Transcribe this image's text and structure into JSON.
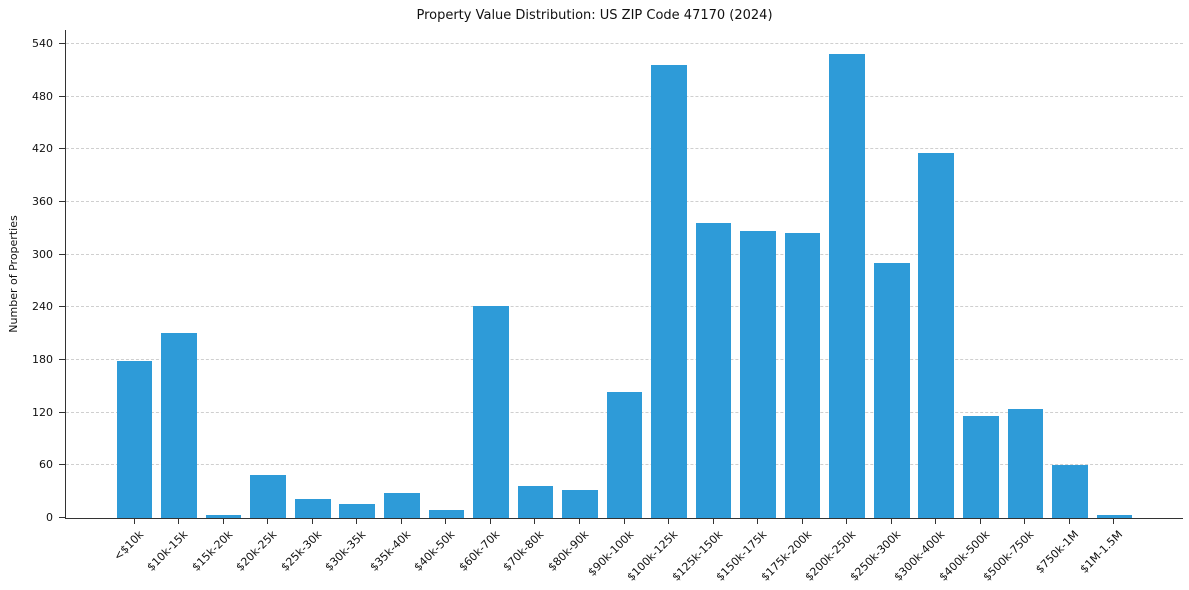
{
  "chart_data": {
    "type": "bar",
    "title": "Property Value Distribution: US ZIP Code 47170 (2024)",
    "xlabel": "",
    "ylabel": "Number of Properties",
    "categories": [
      "<$10k",
      "$10k-15k",
      "$15k-20k",
      "$20k-25k",
      "$25k-30k",
      "$30k-35k",
      "$35k-40k",
      "$40k-50k",
      "$60k-70k",
      "$70k-80k",
      "$80k-90k",
      "$90k-100k",
      "$100k-125k",
      "$125k-150k",
      "$150k-175k",
      "$175k-200k",
      "$200k-250k",
      "$250k-300k",
      "$300k-400k",
      "$400k-500k",
      "$500k-750k",
      "$750k-1M",
      "$1M-1.5M"
    ],
    "values": [
      179,
      211,
      3,
      49,
      22,
      16,
      28,
      9,
      242,
      37,
      32,
      144,
      516,
      336,
      327,
      325,
      529,
      291,
      416,
      116,
      124,
      60,
      3
    ],
    "yticks": [
      0,
      60,
      120,
      180,
      240,
      300,
      360,
      420,
      480,
      540
    ],
    "ylim": [
      0,
      556
    ],
    "bar_color": "#2e9bd8",
    "axis_color": "#333333",
    "grid_color": "#cfcfcf",
    "grid": "horizontal-dashed",
    "legend": "none"
  }
}
